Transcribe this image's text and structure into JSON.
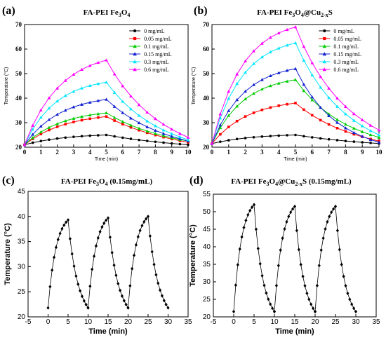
{
  "chart_data": [
    {
      "panel_label": "(a)",
      "title_parts": [
        {
          "t": "FA-PEI Fe",
          "s": "n"
        },
        {
          "t": "3",
          "s": "sub"
        },
        {
          "t": "O",
          "s": "n"
        },
        {
          "t": "4",
          "s": "sub"
        }
      ],
      "type": "line",
      "xlabel": "Time (min)",
      "ylabel": "Temperature (°C)",
      "xlim": [
        0,
        10
      ],
      "ylim": [
        20,
        70
      ],
      "xticks": [
        0,
        1,
        2,
        3,
        4,
        5,
        6,
        7,
        8,
        9,
        10
      ],
      "yticks": [
        20,
        30,
        40,
        50,
        60,
        70
      ],
      "legend_position": "top-right",
      "series": [
        {
          "name": "0 mg/mL",
          "marker": "circle",
          "color": "#000000",
          "peak": 25.0,
          "start": 21.0,
          "end": 21.0,
          "shape": 2.0,
          "decay": 4.0
        },
        {
          "name": "0.05 mg/mL",
          "marker": "square",
          "color": "#ff0000",
          "peak": 32.5,
          "start": 21.0,
          "end": 22.0,
          "shape": 2.0,
          "decay": 3.5
        },
        {
          "name": "0.1 mg/mL",
          "marker": "triangle-up",
          "color": "#00cc00",
          "peak": 34.0,
          "start": 21.0,
          "end": 22.5,
          "shape": 2.2,
          "decay": 3.2
        },
        {
          "name": "0.15 mg/mL",
          "marker": "triangle-up",
          "color": "#1020d0",
          "peak": 39.5,
          "start": 21.0,
          "end": 22.5,
          "shape": 2.3,
          "decay": 3.0
        },
        {
          "name": "0.3 mg/mL",
          "marker": "triangle-up",
          "color": "#00e5ff",
          "peak": 46.5,
          "start": 21.0,
          "end": 23.0,
          "shape": 2.6,
          "decay": 2.8
        },
        {
          "name": "0.6 mg/mL",
          "marker": "triangle-up",
          "color": "#ff00ff",
          "peak": 55.5,
          "start": 21.0,
          "end": 24.0,
          "shape": 2.3,
          "decay": 2.8
        }
      ]
    },
    {
      "panel_label": "(b)",
      "title_parts": [
        {
          "t": "FA-PEI Fe",
          "s": "n"
        },
        {
          "t": "3",
          "s": "sub"
        },
        {
          "t": "O",
          "s": "n"
        },
        {
          "t": "4",
          "s": "sub"
        },
        {
          "t": "@Cu",
          "s": "n"
        },
        {
          "t": "2-x",
          "s": "sub"
        },
        {
          "t": "S",
          "s": "n"
        }
      ],
      "type": "line",
      "xlabel": "Time (min)",
      "ylabel": "Temperature (°C)",
      "xlim": [
        0,
        10
      ],
      "ylim": [
        20,
        70
      ],
      "xticks": [
        0,
        1,
        2,
        3,
        4,
        5,
        6,
        7,
        8,
        9,
        10
      ],
      "yticks": [
        20,
        30,
        40,
        50,
        60,
        70
      ],
      "legend_position": "top-right",
      "series": [
        {
          "name": "0 mg/mL",
          "marker": "circle",
          "color": "#000000",
          "peak": 25.0,
          "start": 21.5,
          "end": 21.5,
          "shape": 2.0,
          "decay": 4.0
        },
        {
          "name": "0.05 mg/mL",
          "marker": "square",
          "color": "#ff0000",
          "peak": 38.0,
          "start": 21.5,
          "end": 22.5,
          "shape": 2.3,
          "decay": 3.0
        },
        {
          "name": "0.1 mg/mL",
          "marker": "triangle-up",
          "color": "#00cc00",
          "peak": 47.5,
          "start": 21.5,
          "end": 24.0,
          "shape": 2.6,
          "decay": 2.6
        },
        {
          "name": "0.15 mg/mL",
          "marker": "triangle-up",
          "color": "#1020d0",
          "peak": 52.0,
          "start": 21.5,
          "end": 22.0,
          "shape": 2.6,
          "decay": 2.2
        },
        {
          "name": "0.3 mg/mL",
          "marker": "triangle-up",
          "color": "#00e5ff",
          "peak": 62.5,
          "start": 21.5,
          "end": 25.0,
          "shape": 2.7,
          "decay": 2.6
        },
        {
          "name": "0.6 mg/mL",
          "marker": "triangle-up",
          "color": "#ff00ff",
          "peak": 69.0,
          "start": 21.5,
          "end": 27.0,
          "shape": 2.7,
          "decay": 2.6
        }
      ]
    },
    {
      "panel_label": "(c)",
      "title_parts": [
        {
          "t": "FA-PEI Fe",
          "s": "n"
        },
        {
          "t": "3",
          "s": "sub"
        },
        {
          "t": "O",
          "s": "n"
        },
        {
          "t": "4",
          "s": "sub"
        },
        {
          "t": " (0.15mg/mL)",
          "s": "n"
        }
      ],
      "type": "line",
      "xlabel": "Time (min)",
      "ylabel": "Temperature (°C)",
      "xlim": [
        -5,
        35
      ],
      "ylim": [
        20,
        45
      ],
      "xticks": [
        -5,
        0,
        5,
        10,
        15,
        20,
        25,
        30,
        35
      ],
      "yticks": [
        20,
        25,
        30,
        35,
        40,
        45
      ],
      "cycles": 3,
      "low": 21.8,
      "peaks": [
        39.3,
        39.7,
        40.0
      ],
      "heat_shape": 2.5,
      "cool_decay": 2.2
    },
    {
      "panel_label": "(d)",
      "title_parts": [
        {
          "t": "FA-PEI  Fe",
          "s": "n"
        },
        {
          "t": "3",
          "s": "sub"
        },
        {
          "t": "O",
          "s": "n"
        },
        {
          "t": "4",
          "s": "sub"
        },
        {
          "t": "@Cu",
          "s": "n"
        },
        {
          "t": "2-x",
          "s": "sub"
        },
        {
          "t": "S (0.15mg/mL)",
          "s": "n"
        }
      ],
      "type": "line",
      "xlabel": "Time (min)",
      "ylabel": "Temperature (°C)",
      "xlim": [
        -5,
        35
      ],
      "ylim": [
        20,
        55
      ],
      "xticks": [
        -5,
        0,
        5,
        10,
        15,
        20,
        25,
        30,
        35
      ],
      "yticks": [
        20,
        25,
        30,
        35,
        40,
        45,
        50,
        55
      ],
      "cycles": 3,
      "low": 21.5,
      "peaks": [
        52.0,
        51.5,
        51.5
      ],
      "heat_shape": 2.6,
      "cool_decay": 2.0
    }
  ]
}
